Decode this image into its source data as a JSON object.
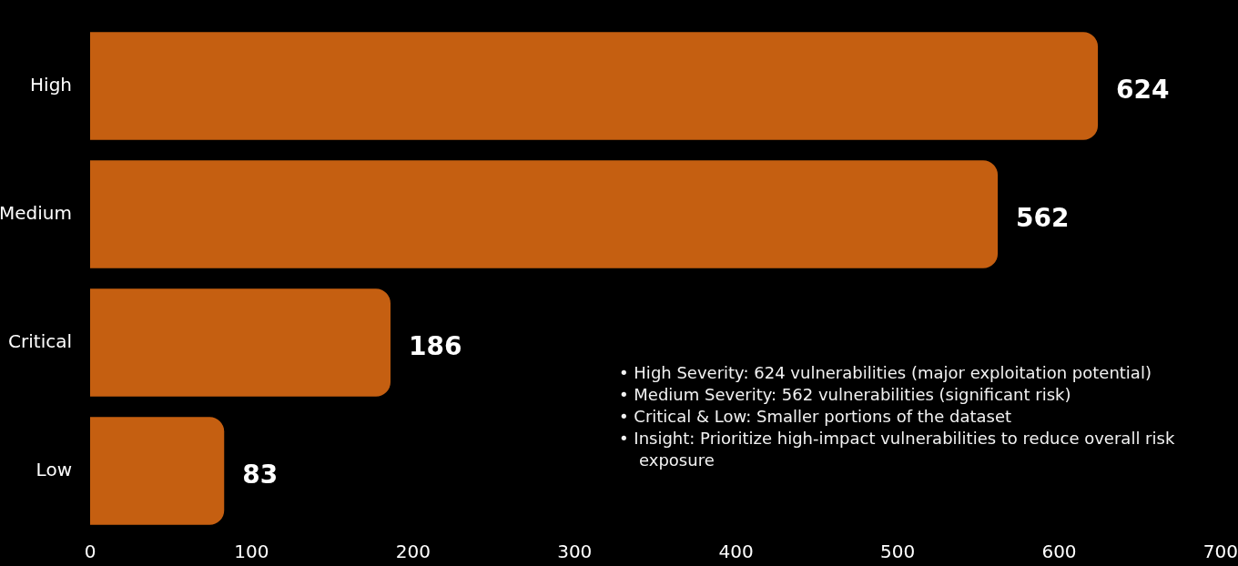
{
  "chart_data": {
    "type": "bar",
    "orientation": "horizontal",
    "categories": [
      "High",
      "Medium",
      "Critical",
      "Low"
    ],
    "values": [
      624,
      562,
      186,
      83
    ],
    "color": "#c55f11",
    "xlim": [
      0,
      700
    ],
    "xticks": [
      0,
      100,
      200,
      300,
      400,
      500,
      600,
      700
    ],
    "data_labels": true,
    "annotations": [
      "• High Severity: 624 vulnerabilities (major exploitation potential)",
      "• Medium Severity: 562 vulnerabilities (significant risk)",
      "• Critical & Low: Smaller portions of the dataset",
      "• Insight: Prioritize high-impact vulnerabilities to reduce overall risk exposure"
    ]
  }
}
